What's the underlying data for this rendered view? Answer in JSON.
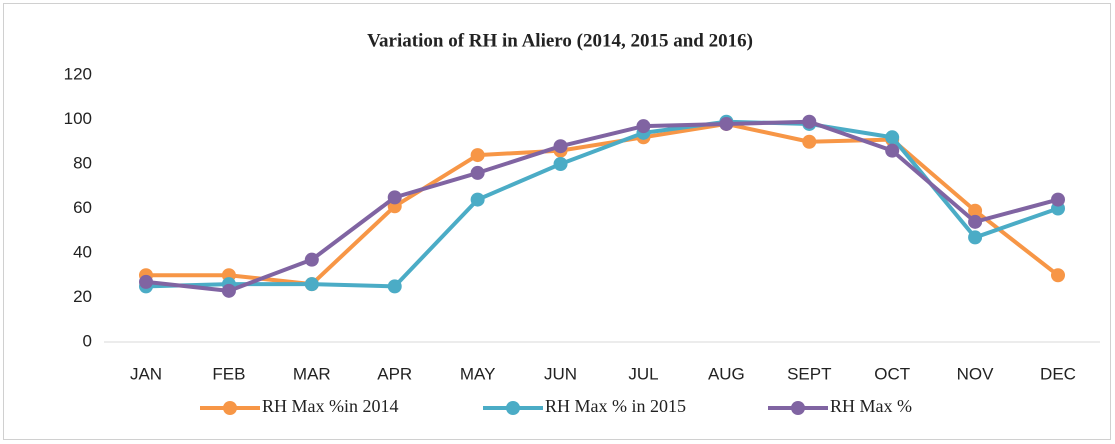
{
  "chart_data": {
    "type": "line",
    "title": "Variation of RH in Aliero (2014, 2015 and 2016)",
    "categories": [
      "JAN",
      "FEB",
      "MAR",
      "APR",
      "MAY",
      "JUN",
      "JUL",
      "AUG",
      "SEPT",
      "OCT",
      "NOV",
      "DEC"
    ],
    "series": [
      {
        "name": "RH Max %in 2014",
        "color": "#f79646",
        "values": [
          30,
          30,
          26,
          61,
          84,
          86,
          92,
          98,
          90,
          91,
          59,
          30
        ]
      },
      {
        "name": "RH Max % in 2015",
        "color": "#4bacc6",
        "values": [
          25,
          26,
          26,
          25,
          64,
          80,
          94,
          99,
          98,
          92,
          47,
          60
        ]
      },
      {
        "name": "RH Max %",
        "color": "#8064a2",
        "values": [
          27,
          23,
          37,
          65,
          76,
          88,
          97,
          98,
          99,
          86,
          54,
          64
        ]
      }
    ],
    "ylim": [
      0,
      120
    ],
    "yticks": [
      0,
      20,
      40,
      60,
      80,
      100,
      120
    ],
    "legend": "bottom"
  }
}
